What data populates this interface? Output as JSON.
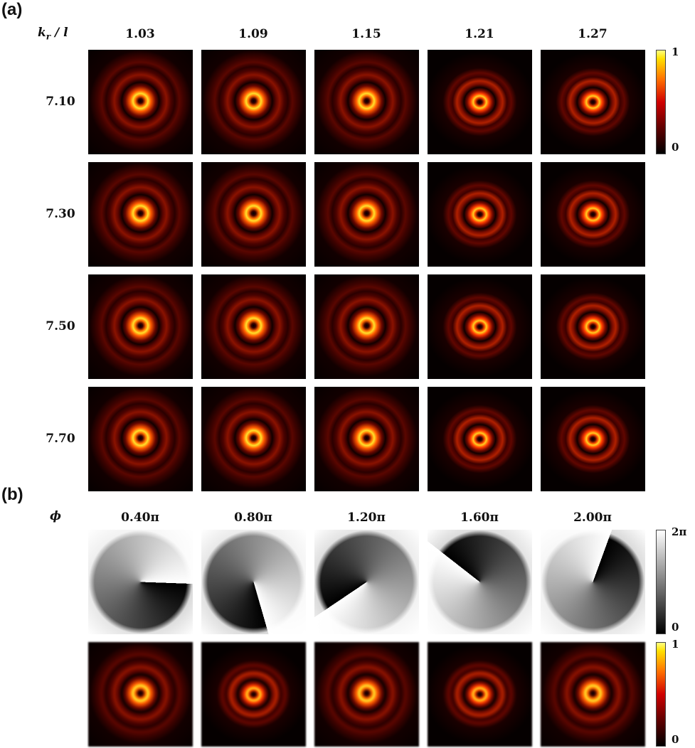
{
  "panel_a": {
    "label": "(a)",
    "parameter": {
      "main": "k",
      "sub": "r",
      "rest": " / l"
    },
    "column_headers": [
      "1.03",
      "1.09",
      "1.15",
      "1.21",
      "1.27"
    ],
    "row_headers": [
      "7.10",
      "7.30",
      "7.50",
      "7.70"
    ],
    "colorbar": {
      "max": "1",
      "min": "0"
    }
  },
  "panel_b": {
    "label": "(b)",
    "parameter": "ϕ",
    "column_headers": [
      "0.40π",
      "0.80π",
      "1.20π",
      "1.60π",
      "2.00π"
    ],
    "phase_colorbar": {
      "max": "2π",
      "min": "0"
    },
    "intensity_colorbar": {
      "max": "1",
      "min": "0"
    }
  }
}
